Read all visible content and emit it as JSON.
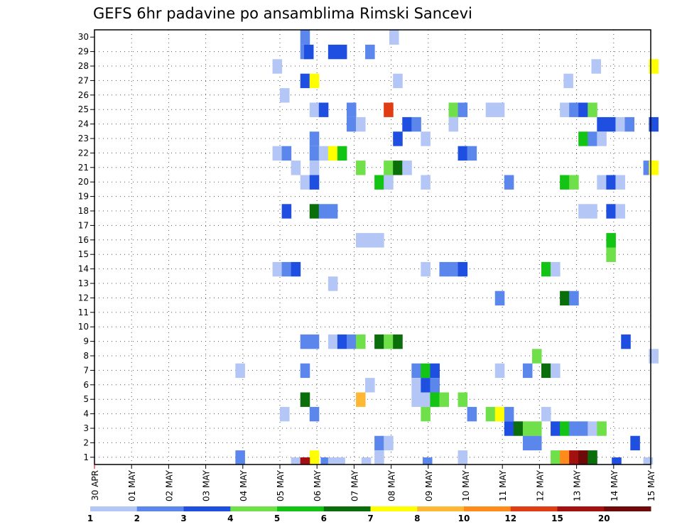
{
  "chart_data": {
    "type": "heatmap",
    "title": "GEFS 6hr padavine po ansamblima Rimski Sancevi",
    "xlabel": "",
    "ylabel": "",
    "x_tick_labels": [
      "30 APR",
      "01 MAY",
      "02 MAY",
      "03 MAY",
      "04 MAY",
      "05 MAY",
      "06 MAY",
      "07 MAY",
      "08 MAY",
      "09 MAY",
      "10 MAY",
      "11 MAY",
      "12 MAY",
      "13 MAY",
      "14 MAY",
      "15 MAY"
    ],
    "xlim": [
      0,
      15
    ],
    "members": [
      1,
      30
    ],
    "y_tick_labels": [
      "1",
      "2",
      "3",
      "4",
      "5",
      "6",
      "7",
      "8",
      "9",
      "10",
      "11",
      "12",
      "13",
      "14",
      "15",
      "16",
      "17",
      "18",
      "19",
      "20",
      "21",
      "22",
      "23",
      "24",
      "25",
      "26",
      "27",
      "28",
      "29",
      "30"
    ],
    "grid": true,
    "colorbar": {
      "labels": [
        "1",
        "2",
        "3",
        "4",
        "5",
        "6",
        "7",
        "8",
        "10",
        "12",
        "15",
        "20"
      ],
      "colors": [
        "#b3c6f5",
        "#5b86ec",
        "#1f4fe0",
        "#6fe04a",
        "#14c414",
        "#0a6e0a",
        "#ffff00",
        "#ffb833",
        "#ff8c1a",
        "#e03d14",
        "#a31010",
        "#6e0a0a"
      ]
    },
    "cells": [
      [
        5.55,
        30,
        2
      ],
      [
        5.55,
        29,
        2
      ],
      [
        5.65,
        29,
        3
      ],
      [
        6.3,
        29,
        3
      ],
      [
        6.55,
        29,
        3
      ],
      [
        7.3,
        29,
        2
      ],
      [
        7.95,
        30,
        1
      ],
      [
        4.8,
        28,
        1
      ],
      [
        13.4,
        28,
        1
      ],
      [
        14.95,
        28,
        7
      ],
      [
        5.55,
        27,
        3
      ],
      [
        5.8,
        27,
        7
      ],
      [
        8.05,
        27,
        1
      ],
      [
        12.65,
        27,
        1
      ],
      [
        5.0,
        26,
        1
      ],
      [
        5.8,
        25,
        1
      ],
      [
        6.05,
        25,
        3
      ],
      [
        6.8,
        25,
        2
      ],
      [
        7.8,
        25,
        10
      ],
      [
        9.55,
        25,
        4
      ],
      [
        9.8,
        25,
        2
      ],
      [
        10.55,
        25,
        1
      ],
      [
        10.8,
        25,
        1
      ],
      [
        12.55,
        25,
        1
      ],
      [
        12.8,
        25,
        2
      ],
      [
        13.05,
        25,
        3
      ],
      [
        13.3,
        25,
        4
      ],
      [
        6.8,
        24,
        2
      ],
      [
        7.05,
        24,
        1
      ],
      [
        8.3,
        24,
        3
      ],
      [
        8.55,
        24,
        2
      ],
      [
        9.55,
        24,
        1
      ],
      [
        13.55,
        24,
        3
      ],
      [
        13.8,
        24,
        3
      ],
      [
        14.05,
        24,
        1
      ],
      [
        14.3,
        24,
        2
      ],
      [
        14.95,
        24,
        3
      ],
      [
        5.8,
        23,
        2
      ],
      [
        8.05,
        23,
        3
      ],
      [
        8.8,
        23,
        1
      ],
      [
        13.05,
        23,
        5
      ],
      [
        13.3,
        23,
        2
      ],
      [
        13.55,
        23,
        1
      ],
      [
        4.8,
        22,
        1
      ],
      [
        5.05,
        22,
        2
      ],
      [
        5.8,
        22,
        2
      ],
      [
        6.05,
        22,
        1
      ],
      [
        6.3,
        22,
        7
      ],
      [
        6.55,
        22,
        5
      ],
      [
        9.8,
        22,
        3
      ],
      [
        10.05,
        22,
        2
      ],
      [
        5.3,
        21,
        1
      ],
      [
        5.8,
        21,
        1
      ],
      [
        7.05,
        21,
        4
      ],
      [
        7.8,
        21,
        4
      ],
      [
        8.05,
        21,
        6
      ],
      [
        8.3,
        21,
        1
      ],
      [
        14.8,
        21,
        2
      ],
      [
        14.95,
        21,
        7
      ],
      [
        5.55,
        20,
        1
      ],
      [
        5.8,
        20,
        3
      ],
      [
        7.55,
        20,
        5
      ],
      [
        7.8,
        20,
        1
      ],
      [
        8.8,
        20,
        1
      ],
      [
        11.05,
        20,
        2
      ],
      [
        12.55,
        20,
        5
      ],
      [
        12.8,
        20,
        4
      ],
      [
        13.55,
        20,
        1
      ],
      [
        13.8,
        20,
        3
      ],
      [
        14.05,
        20,
        1
      ],
      [
        5.05,
        18,
        3
      ],
      [
        5.8,
        18,
        6
      ],
      [
        6.05,
        18,
        2
      ],
      [
        6.3,
        18,
        2
      ],
      [
        13.05,
        18,
        1
      ],
      [
        13.3,
        18,
        1
      ],
      [
        13.8,
        18,
        3
      ],
      [
        14.05,
        18,
        1
      ],
      [
        7.05,
        16,
        1
      ],
      [
        7.3,
        16,
        1
      ],
      [
        7.55,
        16,
        1
      ],
      [
        13.8,
        16,
        5
      ],
      [
        13.8,
        15,
        4
      ],
      [
        4.8,
        14,
        1
      ],
      [
        5.05,
        14,
        2
      ],
      [
        5.3,
        14,
        3
      ],
      [
        8.8,
        14,
        1
      ],
      [
        9.3,
        14,
        2
      ],
      [
        9.55,
        14,
        2
      ],
      [
        9.8,
        14,
        3
      ],
      [
        12.05,
        14,
        5
      ],
      [
        12.3,
        14,
        1
      ],
      [
        6.3,
        13,
        1
      ],
      [
        10.8,
        12,
        2
      ],
      [
        12.55,
        12,
        6
      ],
      [
        12.8,
        12,
        2
      ],
      [
        5.55,
        9,
        2
      ],
      [
        5.8,
        9,
        2
      ],
      [
        6.3,
        9,
        1
      ],
      [
        6.55,
        9,
        3
      ],
      [
        6.8,
        9,
        2
      ],
      [
        7.05,
        9,
        4
      ],
      [
        7.55,
        9,
        6
      ],
      [
        7.8,
        9,
        4
      ],
      [
        8.05,
        9,
        6
      ],
      [
        14.2,
        9,
        3
      ],
      [
        11.8,
        8,
        4
      ],
      [
        14.95,
        8,
        1
      ],
      [
        3.8,
        7,
        1
      ],
      [
        5.55,
        7,
        2
      ],
      [
        8.55,
        7,
        2
      ],
      [
        8.8,
        7,
        5
      ],
      [
        9.05,
        7,
        3
      ],
      [
        10.8,
        7,
        1
      ],
      [
        11.55,
        7,
        2
      ],
      [
        12.05,
        7,
        6
      ],
      [
        12.3,
        7,
        1
      ],
      [
        7.3,
        6,
        1
      ],
      [
        8.55,
        6,
        1
      ],
      [
        8.8,
        6,
        3
      ],
      [
        9.05,
        6,
        2
      ],
      [
        5.55,
        5,
        6
      ],
      [
        7.05,
        5,
        8
      ],
      [
        8.55,
        5,
        1
      ],
      [
        8.8,
        5,
        1
      ],
      [
        9.05,
        5,
        5
      ],
      [
        9.3,
        5,
        4
      ],
      [
        9.8,
        5,
        4
      ],
      [
        5.0,
        4,
        1
      ],
      [
        5.8,
        4,
        2
      ],
      [
        8.8,
        4,
        4
      ],
      [
        10.05,
        4,
        2
      ],
      [
        10.55,
        4,
        4
      ],
      [
        10.8,
        4,
        7
      ],
      [
        11.05,
        4,
        2
      ],
      [
        12.05,
        4,
        1
      ],
      [
        11.05,
        3,
        3
      ],
      [
        11.3,
        3,
        6
      ],
      [
        11.55,
        3,
        4
      ],
      [
        11.8,
        3,
        4
      ],
      [
        12.3,
        3,
        3
      ],
      [
        12.55,
        3,
        5
      ],
      [
        12.8,
        3,
        2
      ],
      [
        13.05,
        3,
        2
      ],
      [
        13.3,
        3,
        1
      ],
      [
        13.55,
        3,
        4
      ],
      [
        7.55,
        2,
        2
      ],
      [
        7.8,
        2,
        1
      ],
      [
        11.55,
        2,
        2
      ],
      [
        11.8,
        2,
        2
      ],
      [
        14.45,
        2,
        3
      ],
      [
        3.8,
        1,
        2
      ],
      [
        5.8,
        1,
        7
      ],
      [
        7.55,
        1,
        1
      ],
      [
        9.8,
        1,
        1
      ],
      [
        12.3,
        1,
        4
      ],
      [
        12.55,
        1,
        9
      ],
      [
        12.8,
        1,
        11
      ],
      [
        13.05,
        1,
        12
      ],
      [
        13.3,
        1,
        6
      ]
    ],
    "edge_cells": [
      [
        5.3,
        1
      ],
      [
        5.55,
        11
      ],
      [
        6.1,
        2
      ],
      [
        6.3,
        1
      ],
      [
        6.5,
        1
      ],
      [
        7.2,
        1
      ],
      [
        8.85,
        2
      ],
      [
        13.95,
        3
      ],
      [
        14.8,
        1
      ]
    ]
  }
}
